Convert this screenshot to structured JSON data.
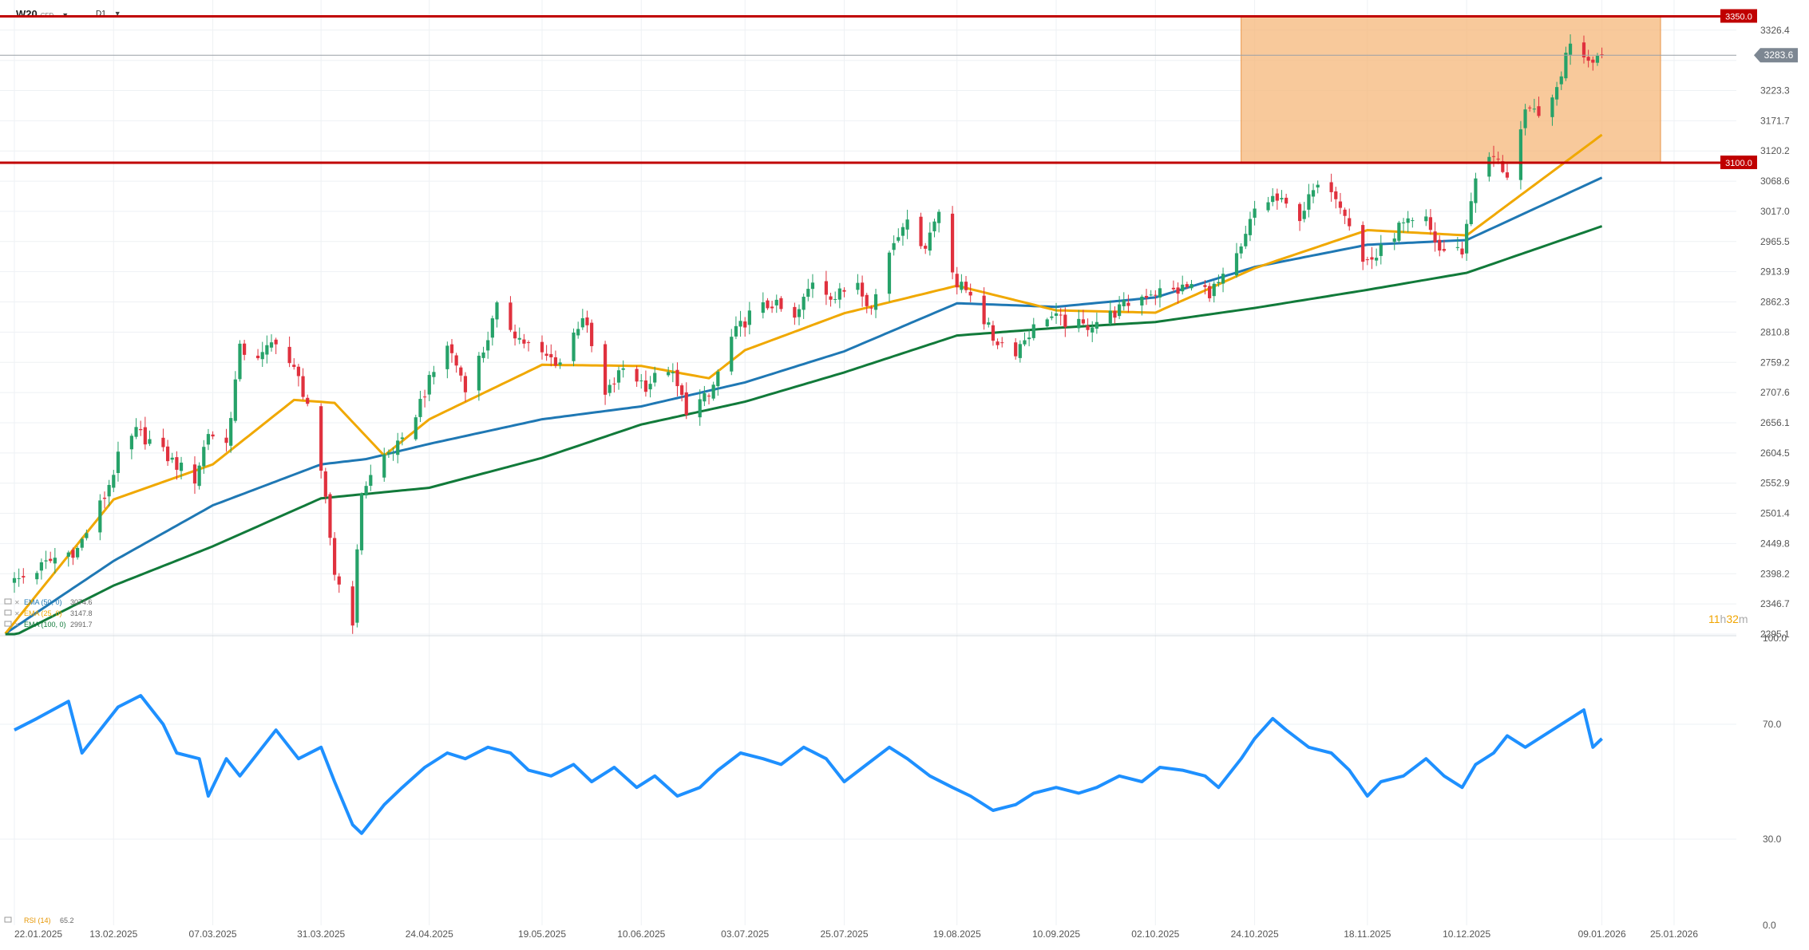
{
  "instrument": {
    "symbol": "W20",
    "type": "CFD",
    "timeframe": "D1"
  },
  "countdown": {
    "h": "11",
    "h_unit": "h",
    "m": "32",
    "m_unit": "m"
  },
  "chart_data": {
    "type": "candlestick",
    "price_ylim": [
      2295.1,
      3377.9
    ],
    "price_ticks": [
      "3326.4",
      "3274.8",
      "3223.3",
      "3171.7",
      "3120.2",
      "3068.6",
      "3017.0",
      "2965.5",
      "2913.9",
      "2862.3",
      "2810.8",
      "2759.2",
      "2707.6",
      "2656.1",
      "2604.5",
      "2552.9",
      "2501.4",
      "2449.8",
      "2398.2",
      "2346.7",
      "2295.1"
    ],
    "last_price": 3283.6,
    "last_price_label": "3283.6",
    "levels": [
      {
        "value": 3350.0,
        "label": "3350.0",
        "color": "#c00000"
      },
      {
        "value": 3100.0,
        "label": "3100.0",
        "color": "#c00000"
      }
    ],
    "zone": {
      "from_date": "2025-10-21",
      "to_date": "2026-01-22",
      "low": 3100.0,
      "high": 3350.0,
      "color": "#f5b77a"
    },
    "x_labels": [
      "22.01.2025",
      "13.02.2025",
      "07.03.2025",
      "31.03.2025",
      "24.04.2025",
      "19.05.2025",
      "10.06.2025",
      "03.07.2025",
      "25.07.2025",
      "19.08.2025",
      "10.09.2025",
      "02.10.2025",
      "24.10.2025",
      "18.11.2025",
      "10.12.2025",
      "09.01.2026",
      "25.01.2026"
    ],
    "x_dates": [
      "2025-01-22",
      "2025-02-13",
      "2025-03-07",
      "2025-03-31",
      "2025-04-24",
      "2025-05-19",
      "2025-06-10",
      "2025-07-03",
      "2025-07-25",
      "2025-08-19",
      "2025-09-10",
      "2025-10-02",
      "2025-10-24",
      "2025-11-18",
      "2025-12-10",
      "2026-01-09",
      "2026-01-25"
    ],
    "price_anchors": [
      [
        "2025-01-22",
        2385
      ],
      [
        "2025-01-27",
        2405
      ],
      [
        "2025-01-31",
        2425
      ],
      [
        "2025-02-05",
        2440
      ],
      [
        "2025-02-11",
        2530
      ],
      [
        "2025-02-14",
        2595
      ],
      [
        "2025-02-18",
        2640
      ],
      [
        "2025-02-21",
        2625
      ],
      [
        "2025-02-26",
        2590
      ],
      [
        "2025-03-03",
        2560
      ],
      [
        "2025-03-06",
        2640
      ],
      [
        "2025-03-10",
        2620
      ],
      [
        "2025-03-13",
        2780
      ],
      [
        "2025-03-18",
        2770
      ],
      [
        "2025-03-21",
        2800
      ],
      [
        "2025-03-26",
        2730
      ],
      [
        "2025-03-28",
        2690
      ],
      [
        "2025-04-01",
        2520
      ],
      [
        "2025-04-03",
        2400
      ],
      [
        "2025-04-07",
        2320
      ],
      [
        "2025-04-09",
        2540
      ],
      [
        "2025-04-14",
        2600
      ],
      [
        "2025-04-18",
        2620
      ],
      [
        "2025-04-23",
        2710
      ],
      [
        "2025-04-28",
        2790
      ],
      [
        "2025-05-02",
        2720
      ],
      [
        "2025-05-06",
        2780
      ],
      [
        "2025-05-09",
        2850
      ],
      [
        "2025-05-14",
        2800
      ],
      [
        "2025-05-19",
        2770
      ],
      [
        "2025-05-23",
        2760
      ],
      [
        "2025-05-28",
        2840
      ],
      [
        "2025-06-02",
        2700
      ],
      [
        "2025-06-06",
        2750
      ],
      [
        "2025-06-11",
        2720
      ],
      [
        "2025-06-16",
        2750
      ],
      [
        "2025-06-20",
        2680
      ],
      [
        "2025-06-25",
        2700
      ],
      [
        "2025-06-30",
        2800
      ],
      [
        "2025-07-04",
        2840
      ],
      [
        "2025-07-09",
        2860
      ],
      [
        "2025-07-14",
        2830
      ],
      [
        "2025-07-18",
        2900
      ],
      [
        "2025-07-23",
        2870
      ],
      [
        "2025-07-28",
        2900
      ],
      [
        "2025-07-31",
        2850
      ],
      [
        "2025-08-04",
        2950
      ],
      [
        "2025-08-07",
        3000
      ],
      [
        "2025-08-12",
        2960
      ],
      [
        "2025-08-15",
        3020
      ],
      [
        "2025-08-19",
        2890
      ],
      [
        "2025-08-22",
        2880
      ],
      [
        "2025-08-27",
        2800
      ],
      [
        "2025-09-01",
        2780
      ],
      [
        "2025-09-04",
        2810
      ],
      [
        "2025-09-08",
        2840
      ],
      [
        "2025-09-11",
        2830
      ],
      [
        "2025-09-16",
        2820
      ],
      [
        "2025-09-22",
        2840
      ],
      [
        "2025-09-26",
        2860
      ],
      [
        "2025-10-01",
        2880
      ],
      [
        "2025-10-06",
        2880
      ],
      [
        "2025-10-10",
        2890
      ],
      [
        "2025-10-14",
        2880
      ],
      [
        "2025-10-17",
        2900
      ],
      [
        "2025-10-21",
        2950
      ],
      [
        "2025-10-24",
        3020
      ],
      [
        "2025-10-28",
        3040
      ],
      [
        "2025-11-03",
        3010
      ],
      [
        "2025-11-06",
        3050
      ],
      [
        "2025-11-10",
        3060
      ],
      [
        "2025-11-13",
        3020
      ],
      [
        "2025-11-17",
        2930
      ],
      [
        "2025-11-20",
        2940
      ],
      [
        "2025-11-25",
        2990
      ],
      [
        "2025-12-01",
        3000
      ],
      [
        "2025-12-04",
        2950
      ],
      [
        "2025-12-09",
        2950
      ],
      [
        "2025-12-12",
        3080
      ],
      [
        "2025-12-16",
        3110
      ],
      [
        "2025-12-19",
        3080
      ],
      [
        "2025-12-23",
        3180
      ],
      [
        "2025-12-29",
        3200
      ],
      [
        "2026-01-02",
        3310
      ],
      [
        "2026-01-06",
        3280
      ],
      [
        "2026-01-09",
        3283.6
      ]
    ],
    "rsi_ylim": [
      0.0,
      100.0
    ],
    "rsi_ticks": [
      "100.0",
      "70.0",
      "30.0",
      "0.0"
    ],
    "rsi_points": [
      [
        "2025-01-22",
        68
      ],
      [
        "2025-01-27",
        72
      ],
      [
        "2025-02-03",
        78
      ],
      [
        "2025-02-06",
        60
      ],
      [
        "2025-02-10",
        68
      ],
      [
        "2025-02-14",
        76
      ],
      [
        "2025-02-19",
        80
      ],
      [
        "2025-02-24",
        70
      ],
      [
        "2025-02-27",
        60
      ],
      [
        "2025-03-04",
        58
      ],
      [
        "2025-03-06",
        45
      ],
      [
        "2025-03-10",
        58
      ],
      [
        "2025-03-13",
        52
      ],
      [
        "2025-03-18",
        62
      ],
      [
        "2025-03-21",
        68
      ],
      [
        "2025-03-26",
        58
      ],
      [
        "2025-03-31",
        62
      ],
      [
        "2025-04-03",
        50
      ],
      [
        "2025-04-07",
        35
      ],
      [
        "2025-04-09",
        32
      ],
      [
        "2025-04-14",
        42
      ],
      [
        "2025-04-18",
        48
      ],
      [
        "2025-04-23",
        55
      ],
      [
        "2025-04-28",
        60
      ],
      [
        "2025-05-02",
        58
      ],
      [
        "2025-05-07",
        62
      ],
      [
        "2025-05-12",
        60
      ],
      [
        "2025-05-16",
        54
      ],
      [
        "2025-05-21",
        52
      ],
      [
        "2025-05-26",
        56
      ],
      [
        "2025-05-30",
        50
      ],
      [
        "2025-06-04",
        55
      ],
      [
        "2025-06-09",
        48
      ],
      [
        "2025-06-13",
        52
      ],
      [
        "2025-06-18",
        45
      ],
      [
        "2025-06-23",
        48
      ],
      [
        "2025-06-27",
        54
      ],
      [
        "2025-07-02",
        60
      ],
      [
        "2025-07-07",
        58
      ],
      [
        "2025-07-11",
        56
      ],
      [
        "2025-07-16",
        62
      ],
      [
        "2025-07-21",
        58
      ],
      [
        "2025-07-25",
        50
      ],
      [
        "2025-07-30",
        56
      ],
      [
        "2025-08-04",
        62
      ],
      [
        "2025-08-08",
        58
      ],
      [
        "2025-08-13",
        52
      ],
      [
        "2025-08-18",
        48
      ],
      [
        "2025-08-22",
        45
      ],
      [
        "2025-08-27",
        40
      ],
      [
        "2025-09-01",
        42
      ],
      [
        "2025-09-05",
        46
      ],
      [
        "2025-09-10",
        48
      ],
      [
        "2025-09-15",
        46
      ],
      [
        "2025-09-19",
        48
      ],
      [
        "2025-09-24",
        52
      ],
      [
        "2025-09-29",
        50
      ],
      [
        "2025-10-03",
        55
      ],
      [
        "2025-10-08",
        54
      ],
      [
        "2025-10-13",
        52
      ],
      [
        "2025-10-16",
        48
      ],
      [
        "2025-10-21",
        58
      ],
      [
        "2025-10-24",
        65
      ],
      [
        "2025-10-28",
        72
      ],
      [
        "2025-10-31",
        68
      ],
      [
        "2025-11-05",
        62
      ],
      [
        "2025-11-10",
        60
      ],
      [
        "2025-11-14",
        54
      ],
      [
        "2025-11-18",
        45
      ],
      [
        "2025-11-21",
        50
      ],
      [
        "2025-11-26",
        52
      ],
      [
        "2025-12-01",
        58
      ],
      [
        "2025-12-05",
        52
      ],
      [
        "2025-12-09",
        48
      ],
      [
        "2025-12-12",
        56
      ],
      [
        "2025-12-16",
        60
      ],
      [
        "2025-12-19",
        66
      ],
      [
        "2025-12-23",
        62
      ],
      [
        "2025-12-29",
        68
      ],
      [
        "2026-01-02",
        72
      ],
      [
        "2026-01-05",
        75
      ],
      [
        "2026-01-07",
        62
      ],
      [
        "2026-01-09",
        65
      ]
    ],
    "ema_lines": [
      {
        "name": "EMA (50, 0)",
        "value": "3074.6",
        "color": "#1f78b4",
        "anchors": [
          [
            "2025-01-20",
            2296
          ],
          [
            "2025-02-13",
            2420
          ],
          [
            "2025-03-07",
            2515
          ],
          [
            "2025-03-31",
            2585
          ],
          [
            "2025-04-10",
            2594
          ],
          [
            "2025-04-24",
            2620
          ],
          [
            "2025-05-19",
            2662
          ],
          [
            "2025-06-10",
            2684
          ],
          [
            "2025-07-03",
            2725
          ],
          [
            "2025-07-25",
            2778
          ],
          [
            "2025-08-19",
            2860
          ],
          [
            "2025-09-10",
            2854
          ],
          [
            "2025-10-02",
            2870
          ],
          [
            "2025-10-24",
            2922
          ],
          [
            "2025-11-18",
            2960
          ],
          [
            "2025-12-10",
            2968
          ],
          [
            "2026-01-09",
            3074.6
          ]
        ]
      },
      {
        "name": "EMA (25, 0)",
        "value": "3147.8",
        "color": "#f0a800",
        "anchors": [
          [
            "2025-01-20",
            2296
          ],
          [
            "2025-02-13",
            2525
          ],
          [
            "2025-03-07",
            2585
          ],
          [
            "2025-03-25",
            2695
          ],
          [
            "2025-04-03",
            2690
          ],
          [
            "2025-04-14",
            2600
          ],
          [
            "2025-04-24",
            2662
          ],
          [
            "2025-05-19",
            2755
          ],
          [
            "2025-06-10",
            2753
          ],
          [
            "2025-06-25",
            2732
          ],
          [
            "2025-07-03",
            2780
          ],
          [
            "2025-07-25",
            2843
          ],
          [
            "2025-08-19",
            2890
          ],
          [
            "2025-09-10",
            2848
          ],
          [
            "2025-10-02",
            2844
          ],
          [
            "2025-10-24",
            2920
          ],
          [
            "2025-11-18",
            2985
          ],
          [
            "2025-12-10",
            2976
          ],
          [
            "2026-01-09",
            3147.8
          ]
        ]
      },
      {
        "name": "EMA (100, 0)",
        "value": "2991.7",
        "color": "#117a3a",
        "anchors": [
          [
            "2025-01-20",
            2285
          ],
          [
            "2025-02-13",
            2378
          ],
          [
            "2025-03-07",
            2445
          ],
          [
            "2025-03-31",
            2527
          ],
          [
            "2025-04-24",
            2545
          ],
          [
            "2025-05-19",
            2596
          ],
          [
            "2025-06-10",
            2653
          ],
          [
            "2025-07-03",
            2692
          ],
          [
            "2025-07-25",
            2742
          ],
          [
            "2025-08-19",
            2805
          ],
          [
            "2025-09-10",
            2818
          ],
          [
            "2025-10-02",
            2828
          ],
          [
            "2025-10-24",
            2852
          ],
          [
            "2025-11-18",
            2883
          ],
          [
            "2025-12-10",
            2912
          ],
          [
            "2026-01-09",
            2991.7
          ]
        ]
      }
    ],
    "legend": [
      {
        "label": "EMA (50, 0)",
        "value": "3074.6",
        "color": "#1f78b4"
      },
      {
        "label": "EMA (25, 0)",
        "value": "3147.8",
        "color": "#f0a800"
      },
      {
        "label": "EMA (100, 0)",
        "value": "2991.7",
        "color": "#117a3a"
      }
    ],
    "rsi_legend": {
      "label": "RSI (14)",
      "value": "65.2",
      "color": "#e69500"
    },
    "colors": {
      "up": "#26a269",
      "down": "#e0313e",
      "grid": "#eef1f4",
      "rsi_line": "#1e90ff",
      "axis_text": "#555555"
    }
  }
}
